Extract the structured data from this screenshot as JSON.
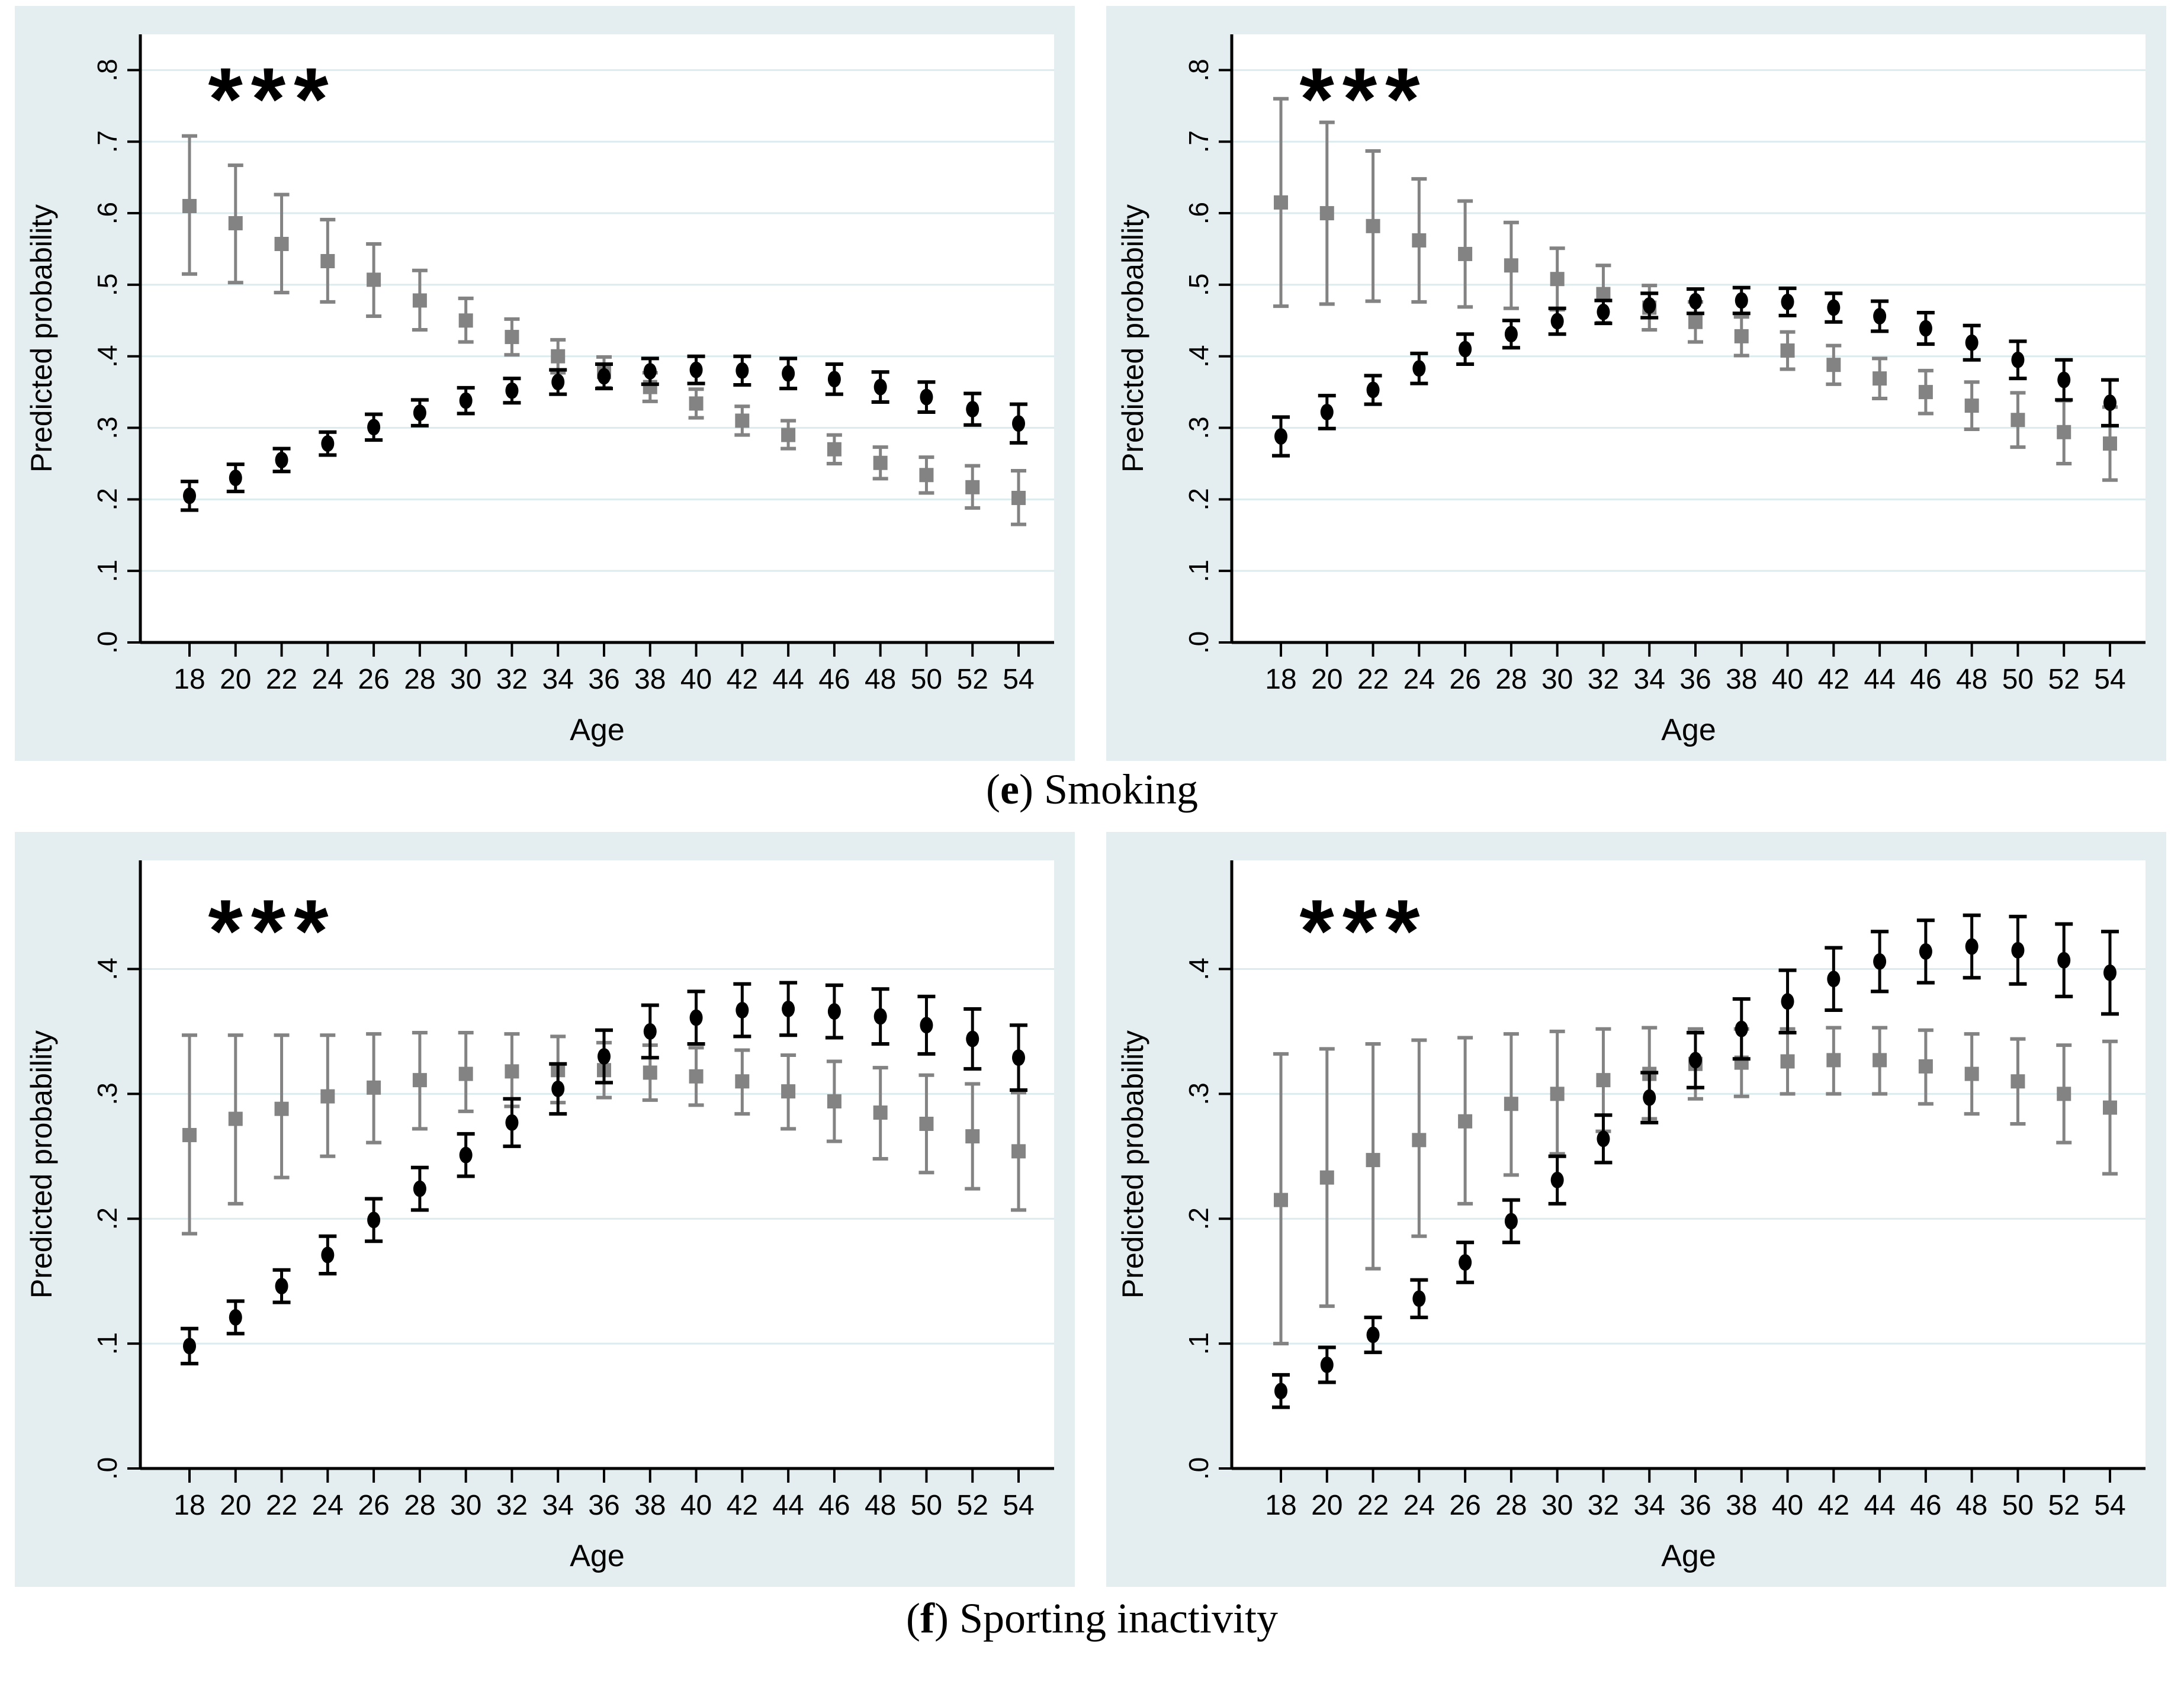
{
  "figure": {
    "ylabel": "Predicted probability",
    "xlabel": "Age",
    "significance_marker": "***",
    "captions": [
      {
        "open": "(",
        "letter": "e",
        "close": ") ",
        "text": "Smoking"
      },
      {
        "open": "(",
        "letter": "f",
        "close": ") ",
        "text": "Sporting inactivity"
      }
    ],
    "colors": {
      "panel_background": "#e4eef0",
      "plot_background": "#ffffff",
      "gridline": "#dcebee",
      "axis": "#000000",
      "series_black": "#000000",
      "series_gray": "#838383"
    }
  },
  "chart_data": [
    {
      "id": "e-left",
      "type": "scatter",
      "title": "",
      "xlabel": "Age",
      "ylabel": "Predicted probability",
      "annotation": {
        "text": "***",
        "x_age": 21.6,
        "y_value": 0.75
      },
      "x": [
        18,
        20,
        22,
        24,
        26,
        28,
        30,
        32,
        34,
        36,
        38,
        40,
        42,
        44,
        46,
        48,
        50,
        52,
        54
      ],
      "xtick_labels": [
        "18",
        "20",
        "22",
        "24",
        "26",
        "28",
        "30",
        "32",
        "34",
        "36",
        "38",
        "40",
        "42",
        "44",
        "46",
        "48",
        "50",
        "52",
        "54"
      ],
      "ylim": [
        0,
        0.85
      ],
      "yticks": [
        0.0,
        0.1,
        0.2,
        0.3,
        0.4,
        0.5,
        0.6,
        0.7,
        0.8
      ],
      "ytick_labels": [
        ".0",
        ".1",
        ".2",
        ".3",
        ".4",
        ".5",
        ".6",
        ".7",
        ".8"
      ],
      "grid": true,
      "legend": "none",
      "series": [
        {
          "name": "gray-squares",
          "marker": "square",
          "y": [
            0.61,
            0.586,
            0.557,
            0.533,
            0.507,
            0.478,
            0.45,
            0.427,
            0.4,
            0.378,
            0.357,
            0.334,
            0.31,
            0.29,
            0.27,
            0.251,
            0.234,
            0.217,
            0.202
          ],
          "lo": [
            0.515,
            0.503,
            0.489,
            0.476,
            0.456,
            0.437,
            0.42,
            0.402,
            0.377,
            0.356,
            0.337,
            0.314,
            0.29,
            0.271,
            0.25,
            0.229,
            0.209,
            0.188,
            0.165
          ],
          "hi": [
            0.708,
            0.667,
            0.626,
            0.591,
            0.557,
            0.52,
            0.481,
            0.452,
            0.423,
            0.399,
            0.377,
            0.354,
            0.33,
            0.31,
            0.29,
            0.273,
            0.259,
            0.247,
            0.24
          ]
        },
        {
          "name": "black-circles",
          "marker": "circle",
          "y": [
            0.205,
            0.23,
            0.255,
            0.278,
            0.301,
            0.321,
            0.338,
            0.352,
            0.364,
            0.372,
            0.379,
            0.381,
            0.38,
            0.376,
            0.368,
            0.357,
            0.343,
            0.326,
            0.306
          ],
          "lo": [
            0.185,
            0.211,
            0.239,
            0.262,
            0.283,
            0.303,
            0.32,
            0.335,
            0.347,
            0.355,
            0.361,
            0.362,
            0.36,
            0.355,
            0.347,
            0.336,
            0.322,
            0.304,
            0.279
          ],
          "hi": [
            0.225,
            0.249,
            0.271,
            0.294,
            0.319,
            0.339,
            0.356,
            0.369,
            0.381,
            0.389,
            0.397,
            0.4,
            0.4,
            0.397,
            0.389,
            0.378,
            0.364,
            0.348,
            0.333
          ]
        }
      ]
    },
    {
      "id": "e-right",
      "type": "scatter",
      "title": "",
      "xlabel": "Age",
      "ylabel": "Predicted probability",
      "annotation": {
        "text": "***",
        "x_age": 21.6,
        "y_value": 0.75
      },
      "x": [
        18,
        20,
        22,
        24,
        26,
        28,
        30,
        32,
        34,
        36,
        38,
        40,
        42,
        44,
        46,
        48,
        50,
        52,
        54
      ],
      "xtick_labels": [
        "18",
        "20",
        "22",
        "24",
        "26",
        "28",
        "30",
        "32",
        "34",
        "36",
        "38",
        "40",
        "42",
        "44",
        "46",
        "48",
        "50",
        "52",
        "54"
      ],
      "ylim": [
        0,
        0.85
      ],
      "yticks": [
        0.0,
        0.1,
        0.2,
        0.3,
        0.4,
        0.5,
        0.6,
        0.7,
        0.8
      ],
      "ytick_labels": [
        ".0",
        ".1",
        ".2",
        ".3",
        ".4",
        ".5",
        ".6",
        ".7",
        ".8"
      ],
      "grid": true,
      "legend": "none",
      "series": [
        {
          "name": "gray-squares",
          "marker": "square",
          "y": [
            0.615,
            0.6,
            0.582,
            0.562,
            0.543,
            0.527,
            0.508,
            0.487,
            0.468,
            0.448,
            0.428,
            0.408,
            0.388,
            0.369,
            0.35,
            0.331,
            0.311,
            0.294,
            0.278
          ],
          "lo": [
            0.47,
            0.473,
            0.477,
            0.476,
            0.469,
            0.467,
            0.465,
            0.447,
            0.437,
            0.42,
            0.401,
            0.382,
            0.361,
            0.341,
            0.32,
            0.298,
            0.273,
            0.25,
            0.227
          ],
          "hi": [
            0.76,
            0.727,
            0.687,
            0.648,
            0.617,
            0.587,
            0.551,
            0.527,
            0.499,
            0.476,
            0.455,
            0.434,
            0.415,
            0.397,
            0.38,
            0.364,
            0.349,
            0.338,
            0.329
          ]
        },
        {
          "name": "black-circles",
          "marker": "circle",
          "y": [
            0.288,
            0.322,
            0.353,
            0.383,
            0.41,
            0.431,
            0.449,
            0.462,
            0.471,
            0.477,
            0.478,
            0.476,
            0.468,
            0.456,
            0.439,
            0.419,
            0.395,
            0.367,
            0.335
          ],
          "lo": [
            0.261,
            0.299,
            0.333,
            0.362,
            0.389,
            0.412,
            0.431,
            0.446,
            0.454,
            0.46,
            0.46,
            0.457,
            0.448,
            0.435,
            0.417,
            0.395,
            0.369,
            0.339,
            0.303
          ],
          "hi": [
            0.315,
            0.345,
            0.373,
            0.404,
            0.431,
            0.45,
            0.467,
            0.478,
            0.488,
            0.494,
            0.496,
            0.495,
            0.488,
            0.477,
            0.461,
            0.443,
            0.421,
            0.395,
            0.367
          ]
        }
      ]
    },
    {
      "id": "f-left",
      "type": "scatter",
      "title": "",
      "xlabel": "Age",
      "ylabel": "Predicted probability",
      "annotation": {
        "text": "***",
        "x_age": 21.6,
        "y_value": 0.425
      },
      "x": [
        18,
        20,
        22,
        24,
        26,
        28,
        30,
        32,
        34,
        36,
        38,
        40,
        42,
        44,
        46,
        48,
        50,
        52,
        54
      ],
      "xtick_labels": [
        "18",
        "20",
        "22",
        "24",
        "26",
        "28",
        "30",
        "32",
        "34",
        "36",
        "38",
        "40",
        "42",
        "44",
        "46",
        "48",
        "50",
        "52",
        "54"
      ],
      "ylim": [
        0,
        0.487
      ],
      "yticks": [
        0.0,
        0.1,
        0.2,
        0.3,
        0.4
      ],
      "ytick_labels": [
        ".0",
        ".1",
        ".2",
        ".3",
        ".4"
      ],
      "grid": true,
      "legend": "none",
      "series": [
        {
          "name": "gray-squares",
          "marker": "square",
          "y": [
            0.267,
            0.28,
            0.288,
            0.298,
            0.305,
            0.311,
            0.316,
            0.318,
            0.319,
            0.319,
            0.317,
            0.314,
            0.31,
            0.302,
            0.294,
            0.285,
            0.276,
            0.266,
            0.254
          ],
          "lo": [
            0.188,
            0.212,
            0.233,
            0.25,
            0.261,
            0.272,
            0.286,
            0.29,
            0.293,
            0.297,
            0.295,
            0.291,
            0.284,
            0.272,
            0.262,
            0.248,
            0.237,
            0.224,
            0.207
          ],
          "hi": [
            0.347,
            0.347,
            0.347,
            0.347,
            0.348,
            0.349,
            0.349,
            0.348,
            0.346,
            0.341,
            0.339,
            0.337,
            0.335,
            0.331,
            0.326,
            0.321,
            0.315,
            0.308,
            0.301
          ]
        },
        {
          "name": "black-circles",
          "marker": "circle",
          "y": [
            0.098,
            0.121,
            0.146,
            0.171,
            0.199,
            0.224,
            0.251,
            0.277,
            0.304,
            0.33,
            0.35,
            0.361,
            0.367,
            0.368,
            0.366,
            0.362,
            0.355,
            0.344,
            0.329
          ],
          "lo": [
            0.084,
            0.108,
            0.133,
            0.156,
            0.182,
            0.207,
            0.234,
            0.258,
            0.284,
            0.309,
            0.329,
            0.34,
            0.346,
            0.347,
            0.345,
            0.34,
            0.332,
            0.32,
            0.303
          ],
          "hi": [
            0.112,
            0.134,
            0.159,
            0.186,
            0.216,
            0.241,
            0.268,
            0.296,
            0.324,
            0.351,
            0.371,
            0.382,
            0.388,
            0.389,
            0.387,
            0.384,
            0.378,
            0.368,
            0.355
          ]
        }
      ]
    },
    {
      "id": "f-right",
      "type": "scatter",
      "title": "",
      "xlabel": "Age",
      "ylabel": "Predicted probability",
      "annotation": {
        "text": "***",
        "x_age": 21.6,
        "y_value": 0.425
      },
      "x": [
        18,
        20,
        22,
        24,
        26,
        28,
        30,
        32,
        34,
        36,
        38,
        40,
        42,
        44,
        46,
        48,
        50,
        52,
        54
      ],
      "xtick_labels": [
        "18",
        "20",
        "22",
        "24",
        "26",
        "28",
        "30",
        "32",
        "34",
        "36",
        "38",
        "40",
        "42",
        "44",
        "46",
        "48",
        "50",
        "52",
        "54"
      ],
      "ylim": [
        0,
        0.487
      ],
      "yticks": [
        0.0,
        0.1,
        0.2,
        0.3,
        0.4
      ],
      "ytick_labels": [
        ".0",
        ".1",
        ".2",
        ".3",
        ".4"
      ],
      "grid": true,
      "legend": "none",
      "series": [
        {
          "name": "gray-squares",
          "marker": "square",
          "y": [
            0.215,
            0.233,
            0.247,
            0.263,
            0.278,
            0.292,
            0.3,
            0.311,
            0.316,
            0.324,
            0.325,
            0.326,
            0.327,
            0.327,
            0.322,
            0.316,
            0.31,
            0.3,
            0.289
          ],
          "lo": [
            0.1,
            0.13,
            0.16,
            0.186,
            0.212,
            0.235,
            0.252,
            0.27,
            0.28,
            0.296,
            0.298,
            0.3,
            0.3,
            0.3,
            0.292,
            0.284,
            0.276,
            0.261,
            0.236
          ],
          "hi": [
            0.332,
            0.336,
            0.34,
            0.343,
            0.345,
            0.348,
            0.35,
            0.352,
            0.353,
            0.352,
            0.352,
            0.352,
            0.353,
            0.353,
            0.351,
            0.348,
            0.344,
            0.339,
            0.342
          ]
        },
        {
          "name": "black-circles",
          "marker": "circle",
          "y": [
            0.062,
            0.083,
            0.107,
            0.136,
            0.165,
            0.198,
            0.231,
            0.264,
            0.297,
            0.327,
            0.352,
            0.374,
            0.392,
            0.406,
            0.414,
            0.418,
            0.415,
            0.407,
            0.397
          ],
          "lo": [
            0.049,
            0.069,
            0.093,
            0.121,
            0.149,
            0.181,
            0.212,
            0.245,
            0.277,
            0.305,
            0.328,
            0.349,
            0.367,
            0.382,
            0.389,
            0.393,
            0.388,
            0.378,
            0.364
          ],
          "hi": [
            0.075,
            0.097,
            0.121,
            0.151,
            0.181,
            0.215,
            0.25,
            0.283,
            0.317,
            0.349,
            0.376,
            0.399,
            0.417,
            0.43,
            0.439,
            0.443,
            0.442,
            0.436,
            0.43
          ]
        }
      ]
    }
  ]
}
